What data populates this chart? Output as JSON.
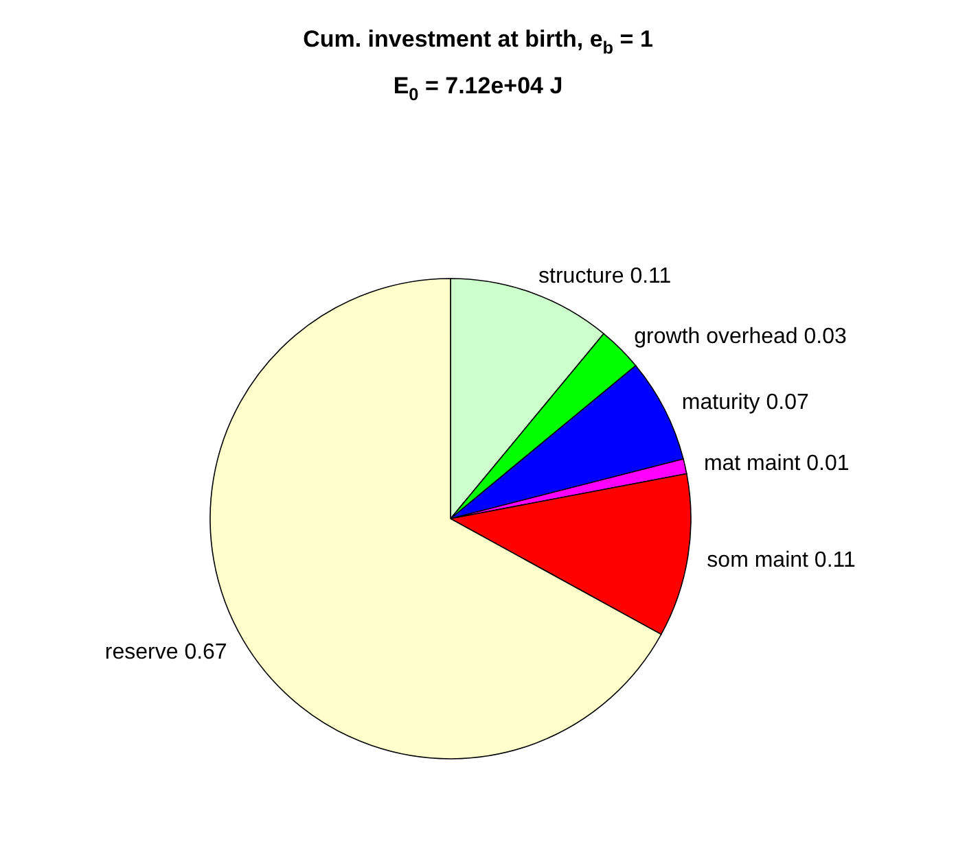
{
  "chart_data": {
    "type": "pie",
    "title": "Cum. investment at birth, e$_{b}$ = 1",
    "subtitle": "E$_{0}$ = 7.12e+04 J",
    "categories": [
      "structure 0.11",
      "growth overhead 0.03",
      "maturity 0.07",
      "mat maint 0.01",
      "som maint 0.11",
      "reserve 0.67"
    ],
    "values": [
      0.11,
      0.03,
      0.07,
      0.01,
      0.11,
      0.67
    ],
    "colors": [
      "#ccffcc",
      "#00ff00",
      "#0000ff",
      "#ff00ff",
      "#ff0000",
      "#ffffcc"
    ],
    "data_labels": false
  }
}
